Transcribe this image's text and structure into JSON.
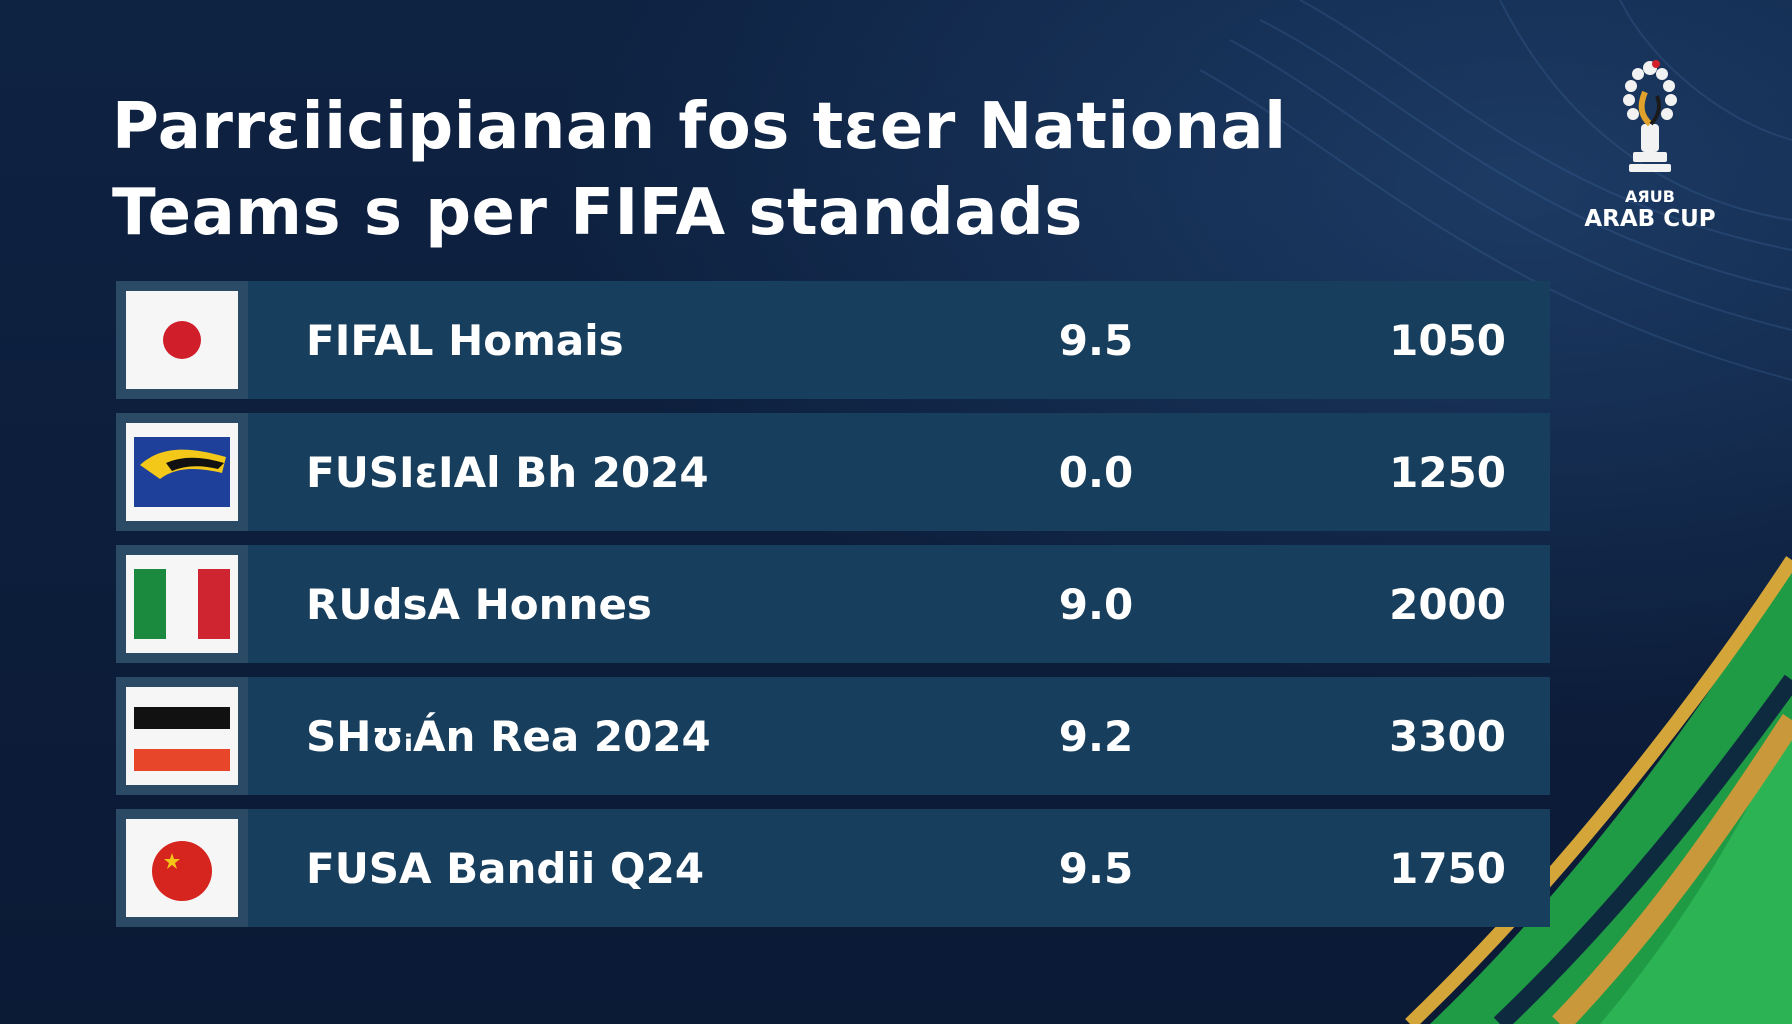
{
  "title": {
    "line1": "Parrɛiicipianan fos tɛer National",
    "line2": "Teams s per FIFA standads"
  },
  "logo": {
    "small_text": "AЯUB",
    "big_text": "ARAB CUP",
    "icon": "trophy-icon"
  },
  "colors": {
    "background": "#0d1d3a",
    "row": "#173e5c",
    "flag_cell": "#2a4a66",
    "accent_green": "#22a84a",
    "accent_gold": "#d4a63a"
  },
  "rows": [
    {
      "flag_icon": "japan-flag-icon",
      "name": "FIFAL Homais",
      "score": "9.5",
      "points": "1050"
    },
    {
      "flag_icon": "blue-yellow-flag-icon",
      "name": "FUSIɛIAl Bh 2024",
      "score": "0.0",
      "points": "1250"
    },
    {
      "flag_icon": "italy-flag-icon",
      "name": "RUdsA Honnes",
      "score": "9.0",
      "points": "2000"
    },
    {
      "flag_icon": "black-white-red-flag-icon",
      "name": "SHʊᵢÁn Rea 2024",
      "score": "9.2",
      "points": "3300"
    },
    {
      "flag_icon": "china-flag-icon",
      "name": "FUSA Bandii Q24",
      "score": "9.5",
      "points": "1750"
    }
  ]
}
